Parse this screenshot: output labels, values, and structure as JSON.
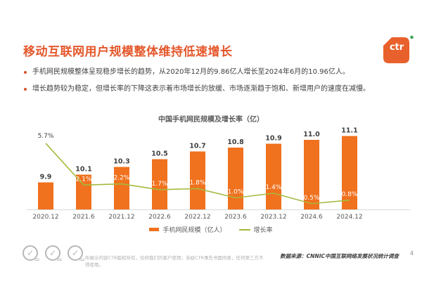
{
  "slide": {
    "title": "移动互联网用户规模整体维持低速增长",
    "bullets": [
      "手机网民规模整体呈现稳步增长的趋势，从2020年12月的9.86亿人增长至2024年6月的10.96亿人。",
      "增长趋势较为稳定，但增长率的下降这表示着市场增长的放缓、市场逐渐趋于饱和、新增用户的速度在减慢。"
    ],
    "logo": {
      "text": "ctr"
    },
    "footer": {
      "disclaimer": "所展示内容CTR版权所有，仅供我们的客户使用；未经CTR事先书面同意，任何第三方不得使用。",
      "source": "数据来源：CNNIC中国互联网络发展状况统计调查",
      "page_number": "4"
    }
  },
  "chart_data": {
    "type": "bar",
    "title": "中国手机网民规模及增长率（亿）",
    "categories": [
      "2020.12",
      "2021.6",
      "2021.12",
      "2022.6",
      "2022.12",
      "2023.6",
      "2023.12",
      "2024.6",
      "2024.12"
    ],
    "series": [
      {
        "name": "手机网民规模（亿人）",
        "type": "bar",
        "values": [
          9.9,
          10.1,
          10.3,
          10.5,
          10.7,
          10.8,
          10.9,
          11.0,
          11.1
        ],
        "color": "#F0711E"
      },
      {
        "name": "增长率",
        "type": "line",
        "values": [
          5.7,
          2.1,
          2.2,
          1.7,
          1.8,
          1.0,
          1.4,
          0.5,
          0.8
        ],
        "unit": "%",
        "color": "#A4BA3E"
      }
    ],
    "legend_position": "bottom",
    "grid": false,
    "bar_axis_implied_min": 9.2,
    "line_axis_min": 0
  },
  "colors": {
    "title": "#E4572B",
    "bar": "#F0711E",
    "line": "#A4BA3E",
    "value_label": "#404040",
    "axis_label": "#595959",
    "axis_line": "#D9D9D9",
    "logo_orange": "#E8612C",
    "logo_green": "#3FA45B"
  }
}
